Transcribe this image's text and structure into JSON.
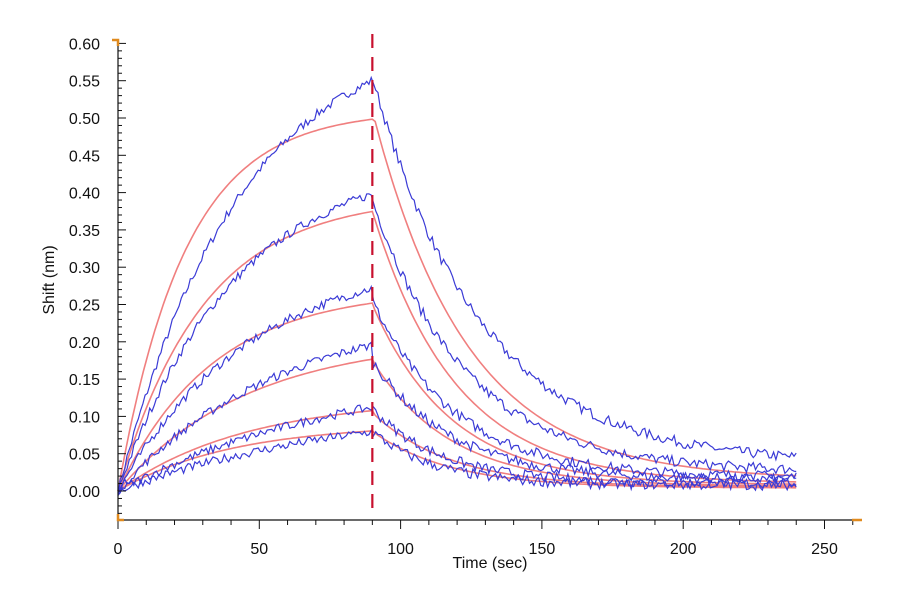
{
  "chart_data": {
    "type": "line",
    "title": "",
    "xlabel": "Time (sec)",
    "ylabel": "Shift (nm)",
    "xlim": [
      0,
      262
    ],
    "ylim": [
      -0.045,
      0.61
    ],
    "x_ticks": [
      0,
      50,
      100,
      150,
      200,
      250
    ],
    "y_ticks": [
      "0.00",
      "0.05",
      "0.10",
      "0.15",
      "0.20",
      "0.25",
      "0.30",
      "0.35",
      "0.40",
      "0.45",
      "0.50",
      "0.55",
      "0.60"
    ],
    "grid": false,
    "legend": "none",
    "association_end_sec": 90,
    "end_time_sec": 240,
    "colors": {
      "measured": "#3b3bd6",
      "fit": "#f07f7f",
      "divider": "#c8102e",
      "axis_marker": "#e08a1e"
    },
    "series": [
      {
        "role": "measured",
        "assoc": {
          "max": 0.63,
          "k": 0.023
        },
        "dissoc": {
          "start": 0.555,
          "k": 0.026,
          "end": 0.035
        }
      },
      {
        "role": "measured",
        "assoc": {
          "max": 0.45,
          "k": 0.024
        },
        "dissoc": {
          "start": 0.39,
          "k": 0.03,
          "end": 0.025
        }
      },
      {
        "role": "measured",
        "assoc": {
          "max": 0.32,
          "k": 0.021
        },
        "dissoc": {
          "start": 0.255,
          "k": 0.034,
          "end": 0.018
        }
      },
      {
        "role": "measured",
        "assoc": {
          "max": 0.25,
          "k": 0.017
        },
        "dissoc": {
          "start": 0.175,
          "k": 0.036,
          "end": 0.015
        }
      },
      {
        "role": "measured",
        "assoc": {
          "max": 0.17,
          "k": 0.012
        },
        "dissoc": {
          "start": 0.11,
          "k": 0.04,
          "end": 0.01
        }
      },
      {
        "role": "measured",
        "assoc": {
          "max": 0.12,
          "k": 0.012
        },
        "dissoc": {
          "start": 0.08,
          "k": 0.045,
          "end": 0.008
        }
      },
      {
        "role": "fit",
        "assoc": {
          "max": 0.51,
          "k": 0.042
        },
        "dissoc": {
          "start": 0.51,
          "k": 0.03,
          "end": 0.015
        }
      },
      {
        "role": "fit",
        "assoc": {
          "max": 0.395,
          "k": 0.033
        },
        "dissoc": {
          "start": 0.375,
          "k": 0.034,
          "end": 0.01
        }
      },
      {
        "role": "fit",
        "assoc": {
          "max": 0.27,
          "k": 0.03
        },
        "dissoc": {
          "start": 0.25,
          "k": 0.036,
          "end": 0.008
        }
      },
      {
        "role": "fit",
        "assoc": {
          "max": 0.205,
          "k": 0.022
        },
        "dissoc": {
          "start": 0.175,
          "k": 0.036,
          "end": 0.006
        }
      },
      {
        "role": "fit",
        "assoc": {
          "max": 0.125,
          "k": 0.022
        },
        "dissoc": {
          "start": 0.105,
          "k": 0.036,
          "end": 0.005
        }
      },
      {
        "role": "fit",
        "assoc": {
          "max": 0.09,
          "k": 0.025
        },
        "dissoc": {
          "start": 0.08,
          "k": 0.036,
          "end": 0.004
        }
      }
    ]
  }
}
